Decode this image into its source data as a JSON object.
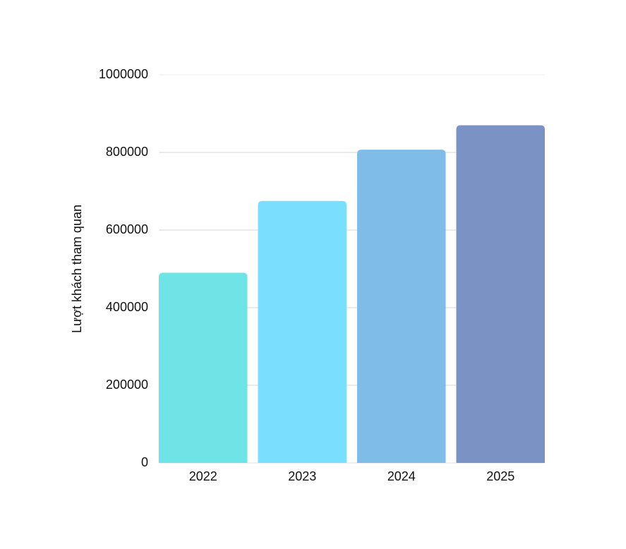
{
  "chart_data": {
    "type": "bar",
    "y_label": "Lượt khách tham quan",
    "categories": [
      "2022",
      "2023",
      "2024",
      "2025"
    ],
    "values": [
      490000,
      675000,
      807000,
      870000
    ],
    "colors": [
      "#6ee4e6",
      "#7adffe",
      "#7fbce8",
      "#7b92c4"
    ],
    "ylim": [
      0,
      1000000
    ],
    "yticks": [
      0,
      200000,
      400000,
      600000,
      800000,
      1000000
    ],
    "grid": true
  }
}
